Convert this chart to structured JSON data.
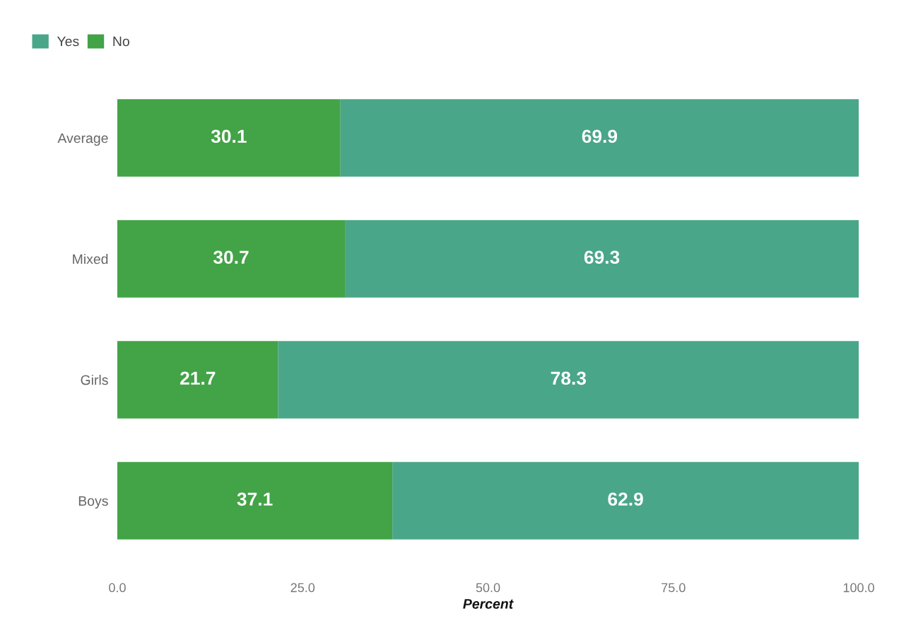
{
  "chart_data": {
    "type": "bar",
    "orientation": "horizontal",
    "stacked": true,
    "categories": [
      "Average",
      "Mixed",
      "Girls",
      "Boys"
    ],
    "series": [
      {
        "name": "No",
        "color": "#43a347",
        "values": [
          30.1,
          30.7,
          21.7,
          37.1
        ]
      },
      {
        "name": "Yes",
        "color": "#4aa688",
        "values": [
          69.9,
          69.3,
          78.3,
          62.9
        ]
      }
    ],
    "xlabel": "Percent",
    "xlim": [
      0,
      100
    ],
    "xticks": [
      {
        "value": 0,
        "label": "0.0"
      },
      {
        "value": 25,
        "label": "25.0"
      },
      {
        "value": 50,
        "label": "50.0"
      },
      {
        "value": 75,
        "label": "75.0"
      },
      {
        "value": 100,
        "label": "100.0"
      }
    ],
    "data_labels": true,
    "legend": "top left",
    "grid": false
  }
}
